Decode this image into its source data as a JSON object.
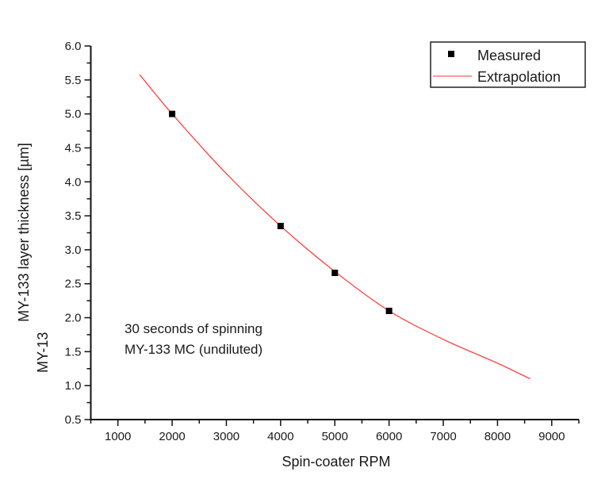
{
  "chart_data": {
    "type": "scatter",
    "title": "",
    "xlabel": "Spin-coater RPM",
    "ylabel": "MY-133  layer  thickness  [µm]",
    "ylabel_ghost": "MY-13",
    "xlim": [
      500,
      9500
    ],
    "ylim": [
      0.5,
      6.0
    ],
    "xticks": [
      1000,
      2000,
      3000,
      4000,
      5000,
      6000,
      7000,
      8000,
      9000
    ],
    "yticks": [
      "0.5",
      "1.0",
      "1.5",
      "2.0",
      "2.5",
      "3.0",
      "3.5",
      "4.0",
      "4.5",
      "5.0",
      "5.5",
      "6.0"
    ],
    "grid": false,
    "legend_position": "top-right",
    "annotations": [
      "30 seconds of spinning",
      "MY-133 MC (undiluted)"
    ],
    "series": [
      {
        "name": "Measured",
        "type": "scatter",
        "color": "#000000",
        "marker": "square",
        "x": [
          2000,
          4000,
          5000,
          6000
        ],
        "y": [
          5.0,
          3.35,
          2.66,
          2.1
        ]
      },
      {
        "name": "Extrapolation",
        "type": "line",
        "color": "#ff3333",
        "x": [
          1400,
          2000,
          3000,
          4000,
          5000,
          6000,
          7000,
          8000,
          8600
        ],
        "y": [
          5.58,
          5.0,
          4.12,
          3.35,
          2.68,
          2.1,
          1.68,
          1.33,
          1.1
        ]
      }
    ]
  }
}
